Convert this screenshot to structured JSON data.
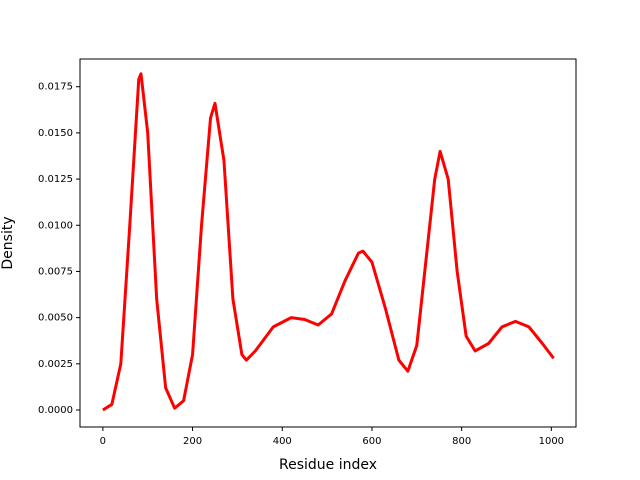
{
  "chart_data": {
    "type": "line",
    "x_label": "Residue index",
    "y_label": "Density",
    "x": [
      0,
      20,
      40,
      60,
      80,
      85,
      100,
      120,
      140,
      160,
      180,
      200,
      220,
      240,
      250,
      270,
      290,
      310,
      320,
      340,
      380,
      420,
      450,
      480,
      510,
      540,
      570,
      580,
      600,
      630,
      660,
      680,
      700,
      720,
      740,
      752,
      770,
      790,
      810,
      830,
      860,
      890,
      920,
      950,
      980,
      1005
    ],
    "series": [
      {
        "color": "#ff0000",
        "values": [
          0.0,
          0.0003,
          0.0025,
          0.01,
          0.0179,
          0.0182,
          0.015,
          0.006,
          0.0012,
          0.0001,
          0.0005,
          0.003,
          0.01,
          0.0158,
          0.0166,
          0.0135,
          0.006,
          0.003,
          0.0027,
          0.0032,
          0.0045,
          0.005,
          0.0049,
          0.0046,
          0.0052,
          0.007,
          0.0085,
          0.0086,
          0.008,
          0.0055,
          0.0027,
          0.0021,
          0.0035,
          0.008,
          0.0125,
          0.014,
          0.0125,
          0.0075,
          0.004,
          0.0032,
          0.0036,
          0.0045,
          0.0048,
          0.0045,
          0.0036,
          0.0028
        ]
      }
    ],
    "xlim": [
      -51,
      1055
    ],
    "xticks": [
      0,
      200,
      400,
      600,
      800,
      1000
    ],
    "ylim": [
      -0.00092,
      0.019
    ],
    "yticks": [
      {
        "value": 0,
        "label": "0.0000"
      },
      {
        "value": 0.0025,
        "label": "0.0025"
      },
      {
        "value": 0.005,
        "label": "0.0050"
      },
      {
        "value": 0.0075,
        "label": "0.0075"
      },
      {
        "value": 0.01,
        "label": "0.0100"
      },
      {
        "value": 0.0125,
        "label": "0.0125"
      },
      {
        "value": 0.015,
        "label": "0.0150"
      },
      {
        "value": 0.0175,
        "label": "0.0175"
      }
    ]
  }
}
